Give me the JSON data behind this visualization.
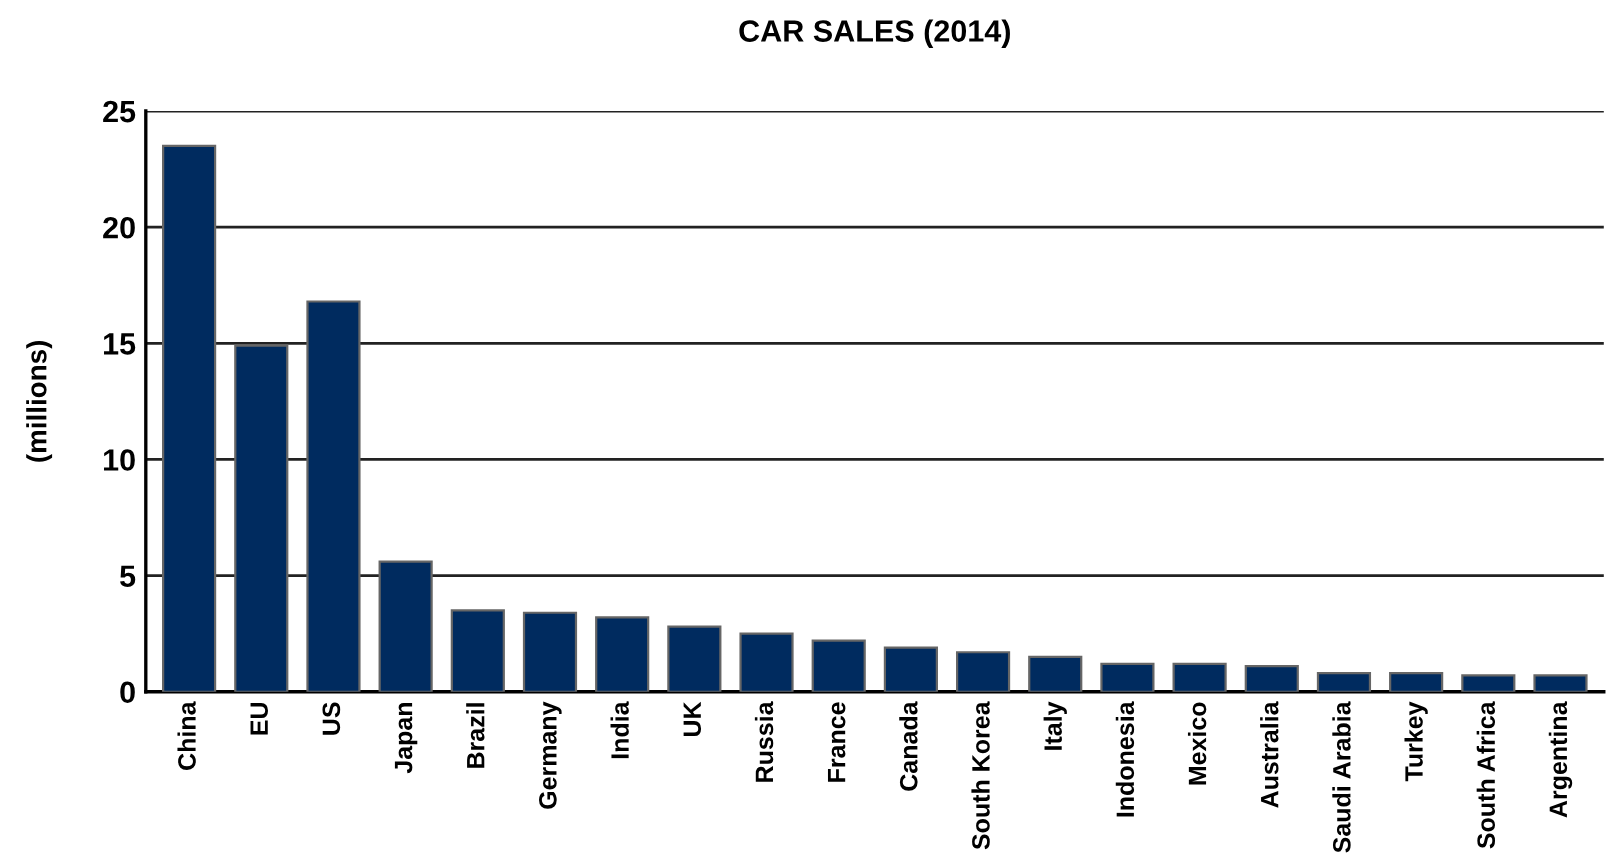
{
  "chart_data": {
    "type": "bar",
    "title": "CAR SALES (2014)",
    "ylabel": "(millions)",
    "categories": [
      "China",
      "EU",
      "US",
      "Japan",
      "Brazil",
      "Germany",
      "India",
      "UK",
      "Russia",
      "France",
      "Canada",
      "South Korea",
      "Italy",
      "Indonesia",
      "Mexico",
      "Australia",
      "Saudi Arabia",
      "Turkey",
      "South Africa",
      "Argentina"
    ],
    "values": [
      23.5,
      14.9,
      16.8,
      5.6,
      3.5,
      3.4,
      3.2,
      2.8,
      2.5,
      2.2,
      1.9,
      1.7,
      1.5,
      1.2,
      1.2,
      1.1,
      0.8,
      0.8,
      0.7,
      0.7
    ],
    "color": "#002b5f",
    "ylim": [
      0,
      25
    ],
    "yticks": [
      0,
      5,
      10,
      15,
      20,
      25
    ],
    "grid": "y"
  }
}
